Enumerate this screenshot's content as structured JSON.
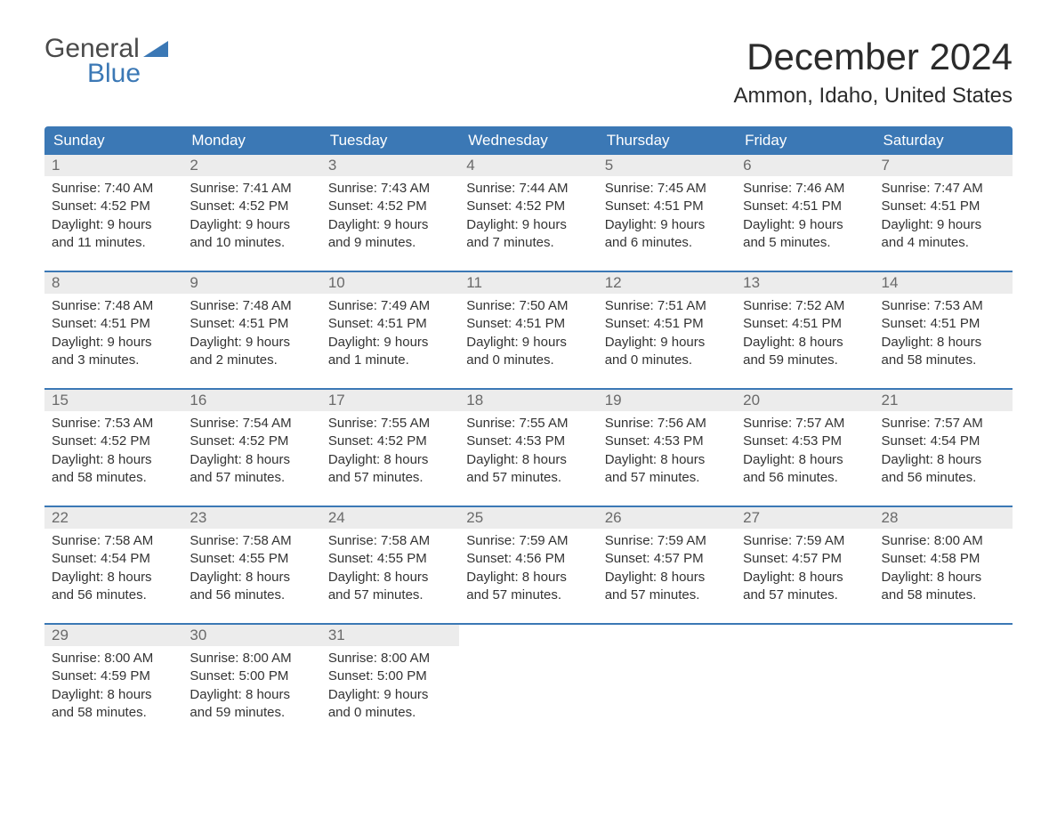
{
  "logo": {
    "top": "General",
    "bottom": "Blue",
    "triangle_color": "#3b78b5"
  },
  "title": "December 2024",
  "location": "Ammon, Idaho, United States",
  "colors": {
    "header_bg": "#3b78b5",
    "header_text": "#ffffff",
    "daynum_bg": "#ececec",
    "daynum_text": "#6a6a6a",
    "body_text": "#333333",
    "week_border": "#3b78b5",
    "page_bg": "#ffffff"
  },
  "typography": {
    "title_fontsize": 42,
    "location_fontsize": 24,
    "weekday_fontsize": 17,
    "daynum_fontsize": 17,
    "body_fontsize": 15
  },
  "weekdays": [
    "Sunday",
    "Monday",
    "Tuesday",
    "Wednesday",
    "Thursday",
    "Friday",
    "Saturday"
  ],
  "weeks": [
    [
      {
        "n": "1",
        "sunrise": "Sunrise: 7:40 AM",
        "sunset": "Sunset: 4:52 PM",
        "d1": "Daylight: 9 hours",
        "d2": "and 11 minutes."
      },
      {
        "n": "2",
        "sunrise": "Sunrise: 7:41 AM",
        "sunset": "Sunset: 4:52 PM",
        "d1": "Daylight: 9 hours",
        "d2": "and 10 minutes."
      },
      {
        "n": "3",
        "sunrise": "Sunrise: 7:43 AM",
        "sunset": "Sunset: 4:52 PM",
        "d1": "Daylight: 9 hours",
        "d2": "and 9 minutes."
      },
      {
        "n": "4",
        "sunrise": "Sunrise: 7:44 AM",
        "sunset": "Sunset: 4:52 PM",
        "d1": "Daylight: 9 hours",
        "d2": "and 7 minutes."
      },
      {
        "n": "5",
        "sunrise": "Sunrise: 7:45 AM",
        "sunset": "Sunset: 4:51 PM",
        "d1": "Daylight: 9 hours",
        "d2": "and 6 minutes."
      },
      {
        "n": "6",
        "sunrise": "Sunrise: 7:46 AM",
        "sunset": "Sunset: 4:51 PM",
        "d1": "Daylight: 9 hours",
        "d2": "and 5 minutes."
      },
      {
        "n": "7",
        "sunrise": "Sunrise: 7:47 AM",
        "sunset": "Sunset: 4:51 PM",
        "d1": "Daylight: 9 hours",
        "d2": "and 4 minutes."
      }
    ],
    [
      {
        "n": "8",
        "sunrise": "Sunrise: 7:48 AM",
        "sunset": "Sunset: 4:51 PM",
        "d1": "Daylight: 9 hours",
        "d2": "and 3 minutes."
      },
      {
        "n": "9",
        "sunrise": "Sunrise: 7:48 AM",
        "sunset": "Sunset: 4:51 PM",
        "d1": "Daylight: 9 hours",
        "d2": "and 2 minutes."
      },
      {
        "n": "10",
        "sunrise": "Sunrise: 7:49 AM",
        "sunset": "Sunset: 4:51 PM",
        "d1": "Daylight: 9 hours",
        "d2": "and 1 minute."
      },
      {
        "n": "11",
        "sunrise": "Sunrise: 7:50 AM",
        "sunset": "Sunset: 4:51 PM",
        "d1": "Daylight: 9 hours",
        "d2": "and 0 minutes."
      },
      {
        "n": "12",
        "sunrise": "Sunrise: 7:51 AM",
        "sunset": "Sunset: 4:51 PM",
        "d1": "Daylight: 9 hours",
        "d2": "and 0 minutes."
      },
      {
        "n": "13",
        "sunrise": "Sunrise: 7:52 AM",
        "sunset": "Sunset: 4:51 PM",
        "d1": "Daylight: 8 hours",
        "d2": "and 59 minutes."
      },
      {
        "n": "14",
        "sunrise": "Sunrise: 7:53 AM",
        "sunset": "Sunset: 4:51 PM",
        "d1": "Daylight: 8 hours",
        "d2": "and 58 minutes."
      }
    ],
    [
      {
        "n": "15",
        "sunrise": "Sunrise: 7:53 AM",
        "sunset": "Sunset: 4:52 PM",
        "d1": "Daylight: 8 hours",
        "d2": "and 58 minutes."
      },
      {
        "n": "16",
        "sunrise": "Sunrise: 7:54 AM",
        "sunset": "Sunset: 4:52 PM",
        "d1": "Daylight: 8 hours",
        "d2": "and 57 minutes."
      },
      {
        "n": "17",
        "sunrise": "Sunrise: 7:55 AM",
        "sunset": "Sunset: 4:52 PM",
        "d1": "Daylight: 8 hours",
        "d2": "and 57 minutes."
      },
      {
        "n": "18",
        "sunrise": "Sunrise: 7:55 AM",
        "sunset": "Sunset: 4:53 PM",
        "d1": "Daylight: 8 hours",
        "d2": "and 57 minutes."
      },
      {
        "n": "19",
        "sunrise": "Sunrise: 7:56 AM",
        "sunset": "Sunset: 4:53 PM",
        "d1": "Daylight: 8 hours",
        "d2": "and 57 minutes."
      },
      {
        "n": "20",
        "sunrise": "Sunrise: 7:57 AM",
        "sunset": "Sunset: 4:53 PM",
        "d1": "Daylight: 8 hours",
        "d2": "and 56 minutes."
      },
      {
        "n": "21",
        "sunrise": "Sunrise: 7:57 AM",
        "sunset": "Sunset: 4:54 PM",
        "d1": "Daylight: 8 hours",
        "d2": "and 56 minutes."
      }
    ],
    [
      {
        "n": "22",
        "sunrise": "Sunrise: 7:58 AM",
        "sunset": "Sunset: 4:54 PM",
        "d1": "Daylight: 8 hours",
        "d2": "and 56 minutes."
      },
      {
        "n": "23",
        "sunrise": "Sunrise: 7:58 AM",
        "sunset": "Sunset: 4:55 PM",
        "d1": "Daylight: 8 hours",
        "d2": "and 56 minutes."
      },
      {
        "n": "24",
        "sunrise": "Sunrise: 7:58 AM",
        "sunset": "Sunset: 4:55 PM",
        "d1": "Daylight: 8 hours",
        "d2": "and 57 minutes."
      },
      {
        "n": "25",
        "sunrise": "Sunrise: 7:59 AM",
        "sunset": "Sunset: 4:56 PM",
        "d1": "Daylight: 8 hours",
        "d2": "and 57 minutes."
      },
      {
        "n": "26",
        "sunrise": "Sunrise: 7:59 AM",
        "sunset": "Sunset: 4:57 PM",
        "d1": "Daylight: 8 hours",
        "d2": "and 57 minutes."
      },
      {
        "n": "27",
        "sunrise": "Sunrise: 7:59 AM",
        "sunset": "Sunset: 4:57 PM",
        "d1": "Daylight: 8 hours",
        "d2": "and 57 minutes."
      },
      {
        "n": "28",
        "sunrise": "Sunrise: 8:00 AM",
        "sunset": "Sunset: 4:58 PM",
        "d1": "Daylight: 8 hours",
        "d2": "and 58 minutes."
      }
    ],
    [
      {
        "n": "29",
        "sunrise": "Sunrise: 8:00 AM",
        "sunset": "Sunset: 4:59 PM",
        "d1": "Daylight: 8 hours",
        "d2": "and 58 minutes."
      },
      {
        "n": "30",
        "sunrise": "Sunrise: 8:00 AM",
        "sunset": "Sunset: 5:00 PM",
        "d1": "Daylight: 8 hours",
        "d2": "and 59 minutes."
      },
      {
        "n": "31",
        "sunrise": "Sunrise: 8:00 AM",
        "sunset": "Sunset: 5:00 PM",
        "d1": "Daylight: 9 hours",
        "d2": "and 0 minutes."
      },
      {
        "empty": true
      },
      {
        "empty": true
      },
      {
        "empty": true
      },
      {
        "empty": true
      }
    ]
  ]
}
